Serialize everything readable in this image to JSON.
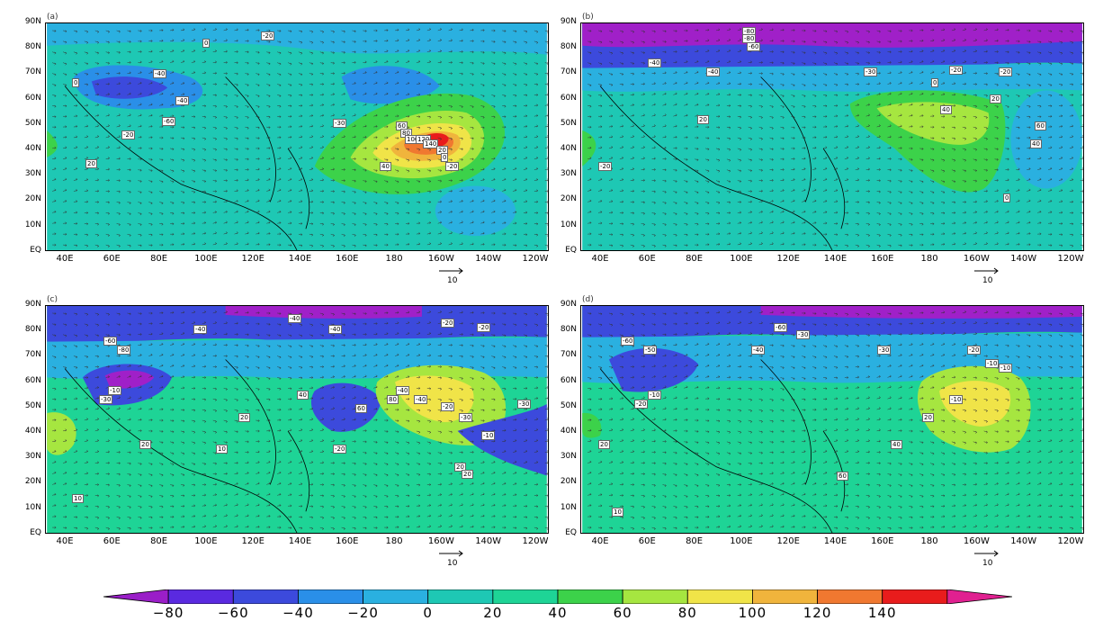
{
  "panels": [
    {
      "tag": "(a)",
      "ref_vector": "10",
      "regions": [
        {
          "value": 0,
          "color": "#1ec8b4"
        },
        {
          "value": -40,
          "color": "#2a8fe8"
        },
        {
          "value": -60,
          "color": "#3c4adc"
        },
        {
          "value": 40,
          "color": "#3cd24a"
        },
        {
          "value": 60,
          "color": "#a6e640"
        },
        {
          "value": 80,
          "color": "#f0e448"
        },
        {
          "value": 100,
          "color": "#f0b43c"
        },
        {
          "value": 120,
          "color": "#f07830"
        },
        {
          "value": 140,
          "color": "#e81c1c"
        }
      ],
      "contour_labels": [
        "0",
        "-20",
        "-40",
        "0",
        "-40",
        "-20",
        "-30",
        "-60",
        "20",
        "40",
        "60",
        "80",
        "100",
        "120",
        "140",
        "20",
        "0",
        "-20"
      ]
    },
    {
      "tag": "(b)",
      "ref_vector": "10",
      "regions": [
        {
          "value": -80,
          "color": "#a020c8"
        },
        {
          "value": -60,
          "color": "#3c4adc"
        },
        {
          "value": -20,
          "color": "#2ab0e0"
        },
        {
          "value": 0,
          "color": "#1ec8b4"
        },
        {
          "value": 40,
          "color": "#3cd24a"
        },
        {
          "value": 60,
          "color": "#a6e640"
        }
      ],
      "contour_labels": [
        "-80",
        "-80",
        "-60",
        "-40",
        "-40",
        "-30",
        "-20",
        "-20",
        "0",
        "20",
        "40",
        "60",
        "40",
        "0",
        "20",
        "-20"
      ]
    },
    {
      "tag": "(c)",
      "ref_vector": "10",
      "regions": [
        {
          "value": -60,
          "color": "#3c4adc"
        },
        {
          "value": -80,
          "color": "#a020c8"
        },
        {
          "value": -20,
          "color": "#2ab0e0"
        },
        {
          "value": 0,
          "color": "#1ec8b4"
        },
        {
          "value": 20,
          "color": "#1ed496"
        },
        {
          "value": 60,
          "color": "#a6e640"
        },
        {
          "value": 80,
          "color": "#f0e448"
        }
      ],
      "contour_labels": [
        "-60",
        "-80",
        "-40",
        "-40",
        "-40",
        "-20",
        "-20",
        "-10",
        "-30",
        "20",
        "40",
        "60",
        "80",
        "-40",
        "-40",
        "-20",
        "-30",
        "-10",
        "20",
        "20",
        "-20",
        "-30",
        "20",
        "10",
        "10"
      ]
    },
    {
      "tag": "(d)",
      "ref_vector": "10",
      "regions": [
        {
          "value": -80,
          "color": "#a020c8"
        },
        {
          "value": -60,
          "color": "#3c4adc"
        },
        {
          "value": -20,
          "color": "#2ab0e0"
        },
        {
          "value": 0,
          "color": "#1ec8b4"
        },
        {
          "value": 20,
          "color": "#1ed496"
        },
        {
          "value": 60,
          "color": "#a6e640"
        },
        {
          "value": 80,
          "color": "#f0e448"
        }
      ],
      "contour_labels": [
        "-60",
        "-50",
        "-60",
        "-30",
        "-40",
        "-30",
        "-20",
        "-10",
        "-10",
        "-10",
        "20",
        "40",
        "60",
        "-10",
        "-20",
        "20",
        "10"
      ]
    }
  ],
  "lat_labels": [
    "90N",
    "80N",
    "70N",
    "60N",
    "50N",
    "40N",
    "30N",
    "20N",
    "10N",
    "EQ"
  ],
  "lon_labels": [
    "40E",
    "60E",
    "80E",
    "100E",
    "120E",
    "140E",
    "160E",
    "180",
    "160W",
    "140W",
    "120W"
  ],
  "colorbar": {
    "ticks": [
      "−80",
      "−60",
      "−40",
      "−20",
      "0",
      "20",
      "40",
      "60",
      "80",
      "100",
      "120",
      "140"
    ],
    "colors": [
      "#9a1ec8",
      "#5a2ae0",
      "#3c4adc",
      "#2a8fe8",
      "#2ab0e0",
      "#1ec8b4",
      "#1ed496",
      "#3cd24a",
      "#a6e640",
      "#f0e448",
      "#f0b43c",
      "#f07830",
      "#e81c1c",
      "#e02090"
    ]
  }
}
